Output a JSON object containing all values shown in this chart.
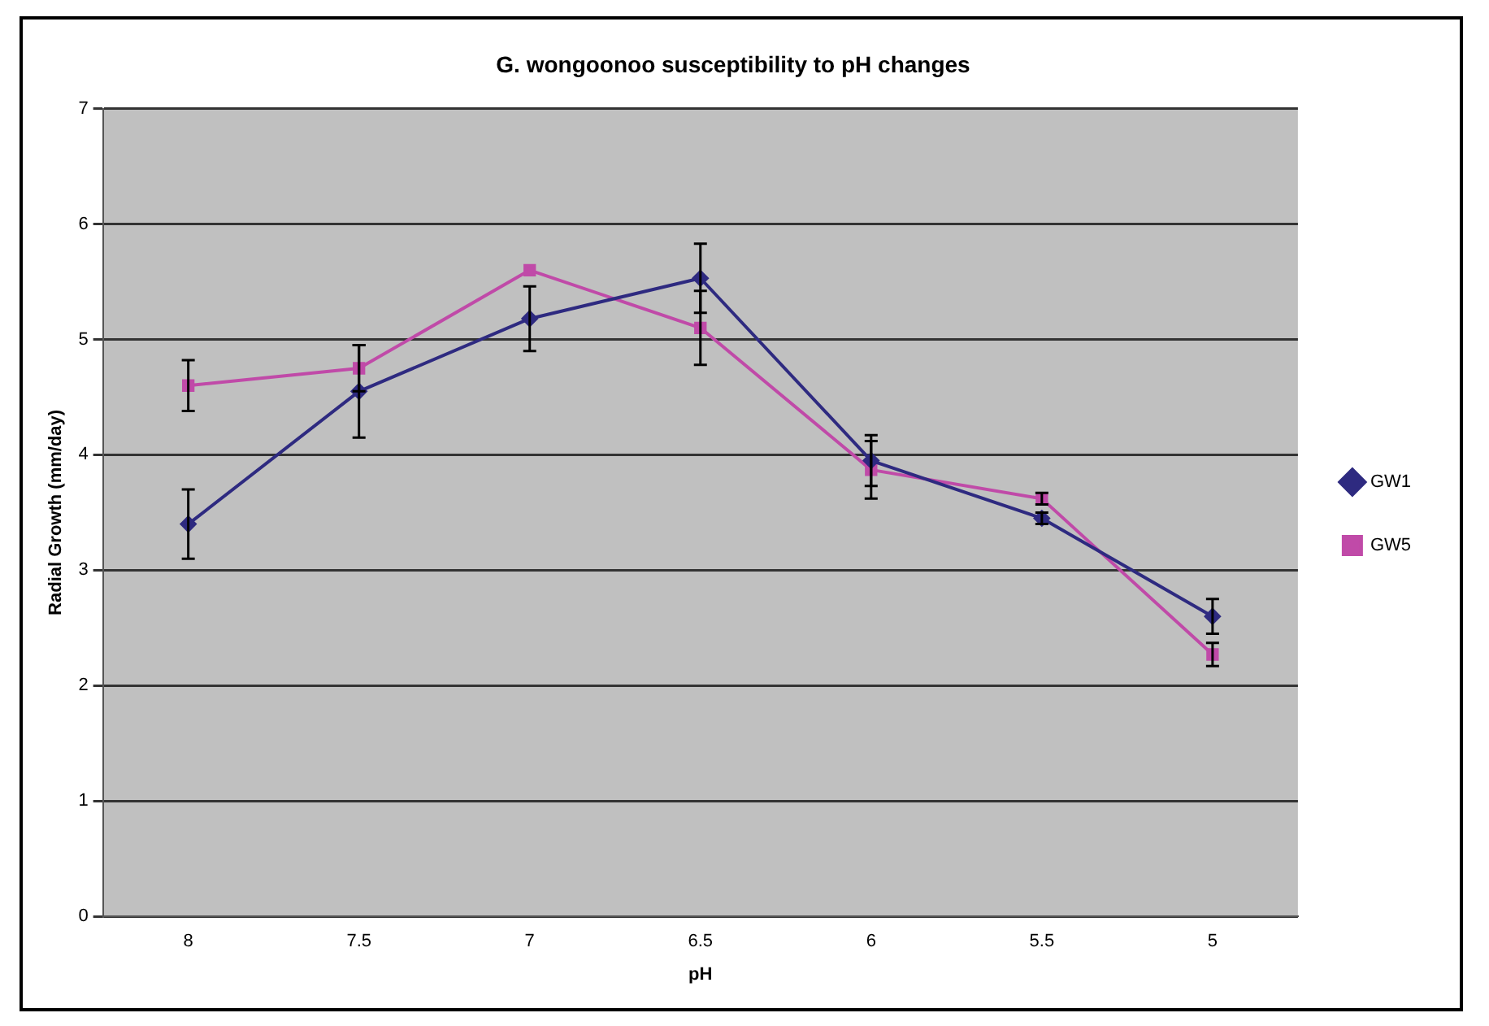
{
  "chart_data": {
    "type": "line",
    "title": "G. wongoonoo susceptibility to pH changes",
    "xlabel": "pH",
    "ylabel": "Radial Growth (mm/day)",
    "categories": [
      "8",
      "7.5",
      "7",
      "6.5",
      "6",
      "5.5",
      "5"
    ],
    "series": [
      {
        "name": "GW1",
        "color": "#2e2a80",
        "marker": "diamond",
        "values": [
          3.4,
          4.55,
          5.18,
          5.53,
          3.95,
          3.45,
          2.6
        ],
        "errors": [
          0.3,
          0.4,
          0.28,
          0.3,
          0.22,
          0.05,
          0.15
        ]
      },
      {
        "name": "GW5",
        "color": "#c04aa8",
        "marker": "square",
        "values": [
          4.6,
          4.75,
          5.6,
          5.1,
          3.87,
          3.62,
          2.27
        ],
        "errors": [
          0.22,
          0.2,
          null,
          0.32,
          0.25,
          0.05,
          0.1
        ]
      }
    ],
    "ylim": [
      0,
      7
    ],
    "yticks": [
      0,
      1,
      2,
      3,
      4,
      5,
      6,
      7
    ],
    "grid": "y",
    "legend": "right"
  }
}
